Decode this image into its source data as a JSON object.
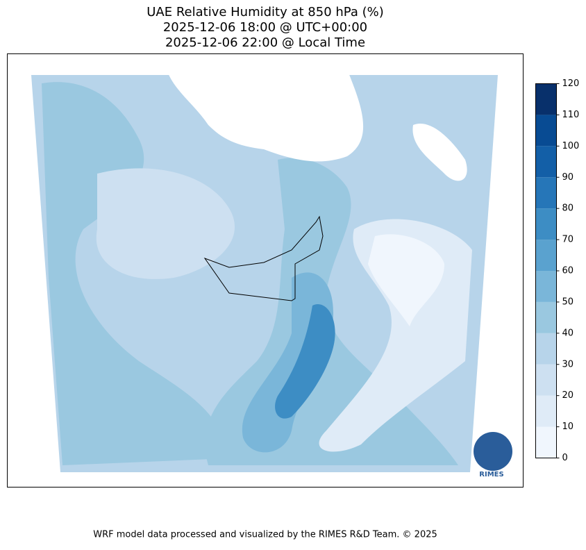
{
  "title": [
    "UAE Relative Humidity at 850 hPa (%)",
    "2025-12-06 18:00 @ UTC+00:00",
    "2025-12-06 22:00 @ Local Time"
  ],
  "colorbar": {
    "lim": [
      0,
      120
    ],
    "ticks": [
      0,
      10,
      20,
      30,
      40,
      50,
      60,
      70,
      80,
      90,
      100,
      110,
      120
    ],
    "colors": [
      "#f0f6fd",
      "#dfebf7",
      "#cde0f1",
      "#b7d4ea",
      "#9ac8e0",
      "#7ab6d9",
      "#5aa2cf",
      "#3d8dc4",
      "#2676b8",
      "#135fa7",
      "#084b93",
      "#08306b"
    ]
  },
  "logo": "RIMES",
  "footer": "WRF model data processed and visualized by the RIMES R&D Team. © 2025"
}
